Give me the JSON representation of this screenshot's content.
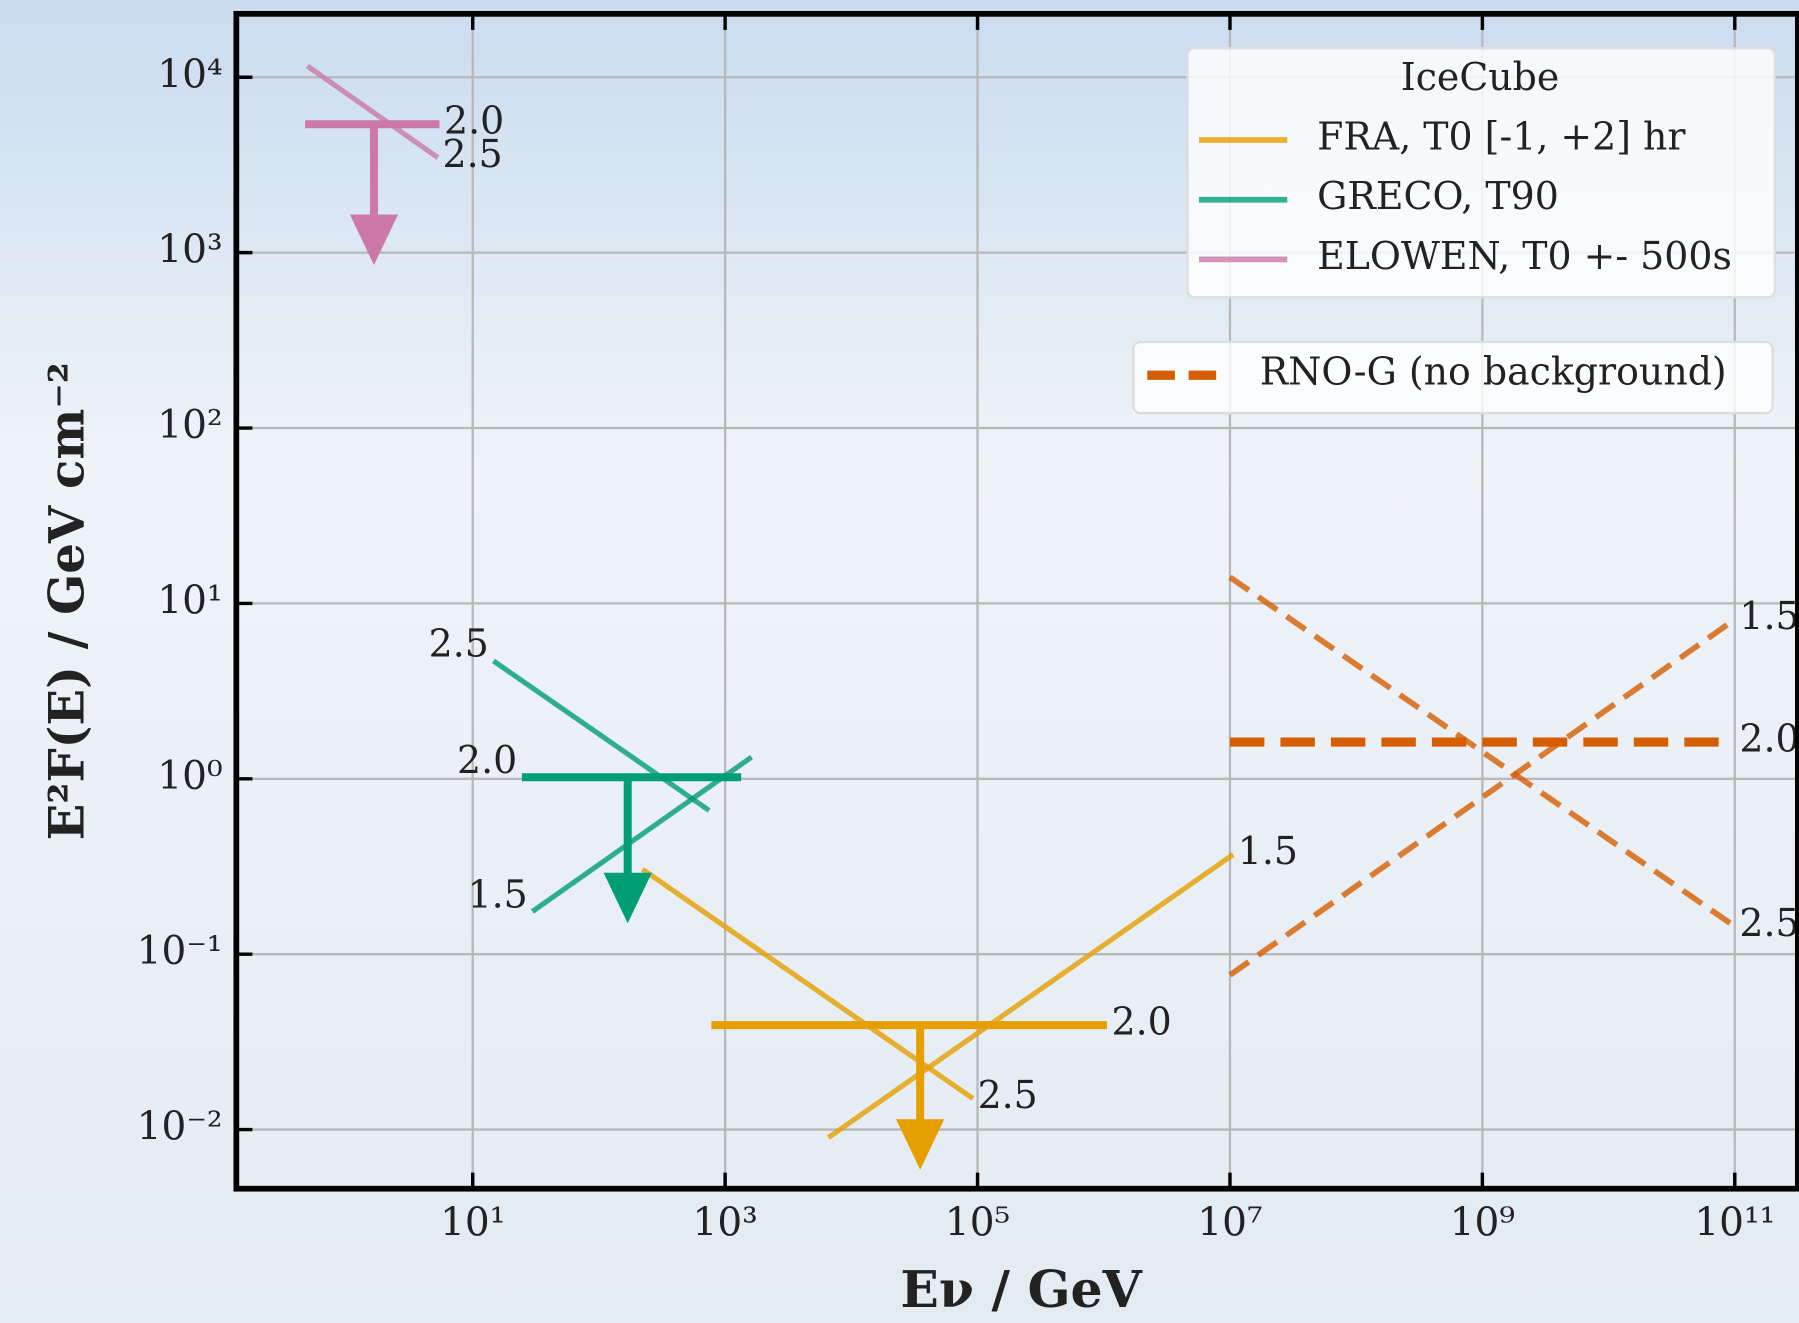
{
  "chart_data": {
    "type": "line",
    "xlabel": "Eν / GeV",
    "ylabel": "E²F(E) / GeV cm⁻²",
    "xscale": "log",
    "yscale": "log",
    "xlim": [
      0.134,
      316000000000
    ],
    "ylim": [
      0.0046,
      23000
    ],
    "xticks": [
      {
        "value": 10,
        "label": "10¹"
      },
      {
        "value": 1000,
        "label": "10³"
      },
      {
        "value": 100000,
        "label": "10⁵"
      },
      {
        "value": 10000000,
        "label": "10⁷"
      },
      {
        "value": 1000000000,
        "label": "10⁹"
      },
      {
        "value": 100000000000,
        "label": "10¹¹"
      }
    ],
    "yticks": [
      {
        "value": 0.01,
        "label": "10⁻²"
      },
      {
        "value": 0.1,
        "label": "10⁻¹"
      },
      {
        "value": 1,
        "label": "10⁰"
      },
      {
        "value": 10,
        "label": "10¹"
      },
      {
        "value": 100,
        "label": "10²"
      },
      {
        "value": 1000,
        "label": "10³"
      },
      {
        "value": 10000,
        "label": "10⁴"
      }
    ],
    "grid": true,
    "legend_title": "IceCube",
    "legend_loc": "upper right",
    "series": [
      {
        "name": "FRA, T0 [-1, +2] hr",
        "color": "#e69f00",
        "linestyle": "solid",
        "lines": [
          {
            "label": "2.0",
            "x": [
              778,
              1060000
            ],
            "y": [
              0.0394,
              0.0394
            ]
          },
          {
            "label": "2.5",
            "x": [
              221,
              92000
            ],
            "y": [
              0.305,
              0.015
            ]
          },
          {
            "label": "1.5",
            "x": [
              6580,
              10600000
            ],
            "y": [
              0.009,
              0.37
            ]
          }
        ],
        "arrow": {
          "x": 35100,
          "y_tip": 0.0059
        }
      },
      {
        "name": "GRECO, T90",
        "color": "#009e73",
        "linestyle": "solid",
        "lines": [
          {
            "label": "2.0",
            "x": [
              24.5,
              1340
            ],
            "y": [
              1.02,
              1.02
            ]
          },
          {
            "label": "2.5",
            "x": [
              14.6,
              746
            ],
            "y": [
              4.7,
              0.66
            ]
          },
          {
            "label": "1.5",
            "x": [
              29.7,
              1620
            ],
            "y": [
              0.175,
              1.33
            ]
          }
        ],
        "arrow": {
          "x": 169,
          "y_tip": 0.15
        }
      },
      {
        "name": "ELOWEN, T0 +- 500s",
        "color": "#cc79a7",
        "linestyle": "solid",
        "lines": [
          {
            "label": "2.0",
            "x": [
              0.47,
              5.45
            ],
            "y": [
              5400,
              5400
            ]
          },
          {
            "label": "2.5",
            "x": [
              0.49,
              5.3
            ],
            "y": [
              11600,
              3480
            ]
          }
        ],
        "arrow": {
          "x": 1.65,
          "y_tip": 850
        }
      },
      {
        "name": "RNO-G (no background)",
        "color": "#d55e00",
        "linestyle": "dashed",
        "lines": [
          {
            "label": "2.0",
            "x": [
              10000000,
              100000000000
            ],
            "y": [
              1.62,
              1.62
            ]
          },
          {
            "label": "2.5",
            "x": [
              10000000,
              100000000000
            ],
            "y": [
              14.1,
              0.144
            ]
          },
          {
            "label": "1.5",
            "x": [
              10000000,
              100000000000
            ],
            "y": [
              0.076,
              8.1
            ]
          }
        ]
      }
    ]
  }
}
